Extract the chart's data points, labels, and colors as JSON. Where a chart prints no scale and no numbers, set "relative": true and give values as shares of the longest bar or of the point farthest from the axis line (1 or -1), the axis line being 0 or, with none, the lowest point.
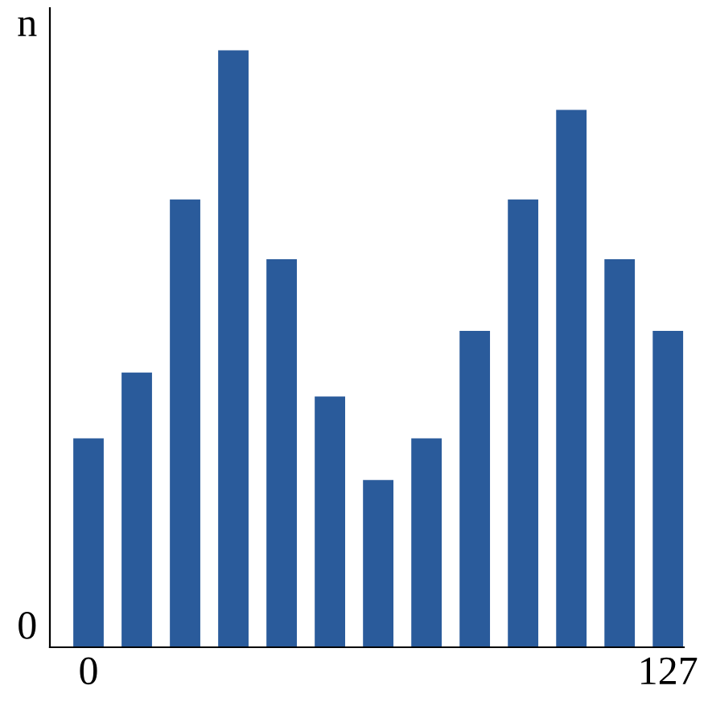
{
  "chart_data": {
    "type": "bar",
    "categories": [
      "0",
      null,
      null,
      null,
      null,
      null,
      null,
      null,
      null,
      null,
      null,
      null,
      "127"
    ],
    "values": [
      0.35,
      0.46,
      0.75,
      1,
      0.65,
      0.42,
      0.28,
      0.35,
      0.53,
      0.75,
      0.9,
      0.65,
      0.53
    ],
    "color": "#2a5b9b",
    "relative": true,
    "ylabel": "n",
    "annotations": [
      "0"
    ]
  }
}
